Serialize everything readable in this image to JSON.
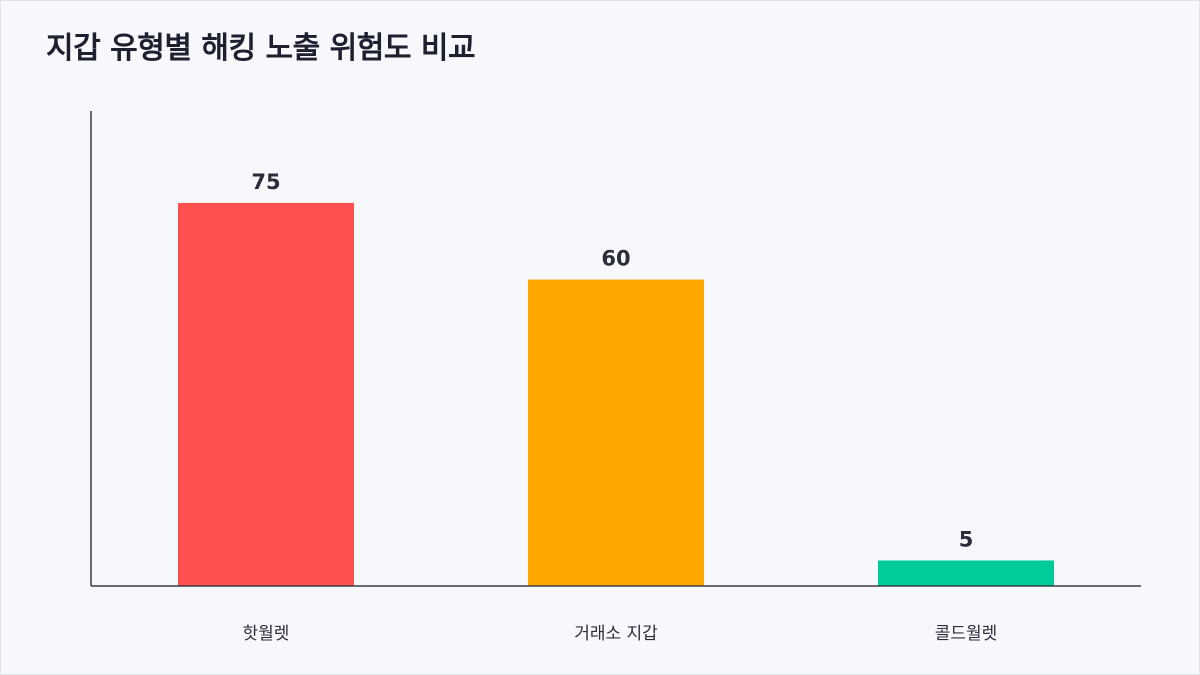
{
  "title": "지갑 유형별 해킹 노출 위험도 비교",
  "chart_data": {
    "type": "bar",
    "categories": [
      "핫월렛",
      "거래소 지갑",
      "콜드월렛"
    ],
    "values": [
      75,
      60,
      5
    ],
    "colors": [
      "#ff4f4f",
      "#ffa600",
      "#00cc99"
    ],
    "title": "지갑 유형별 해킹 노출 위험도 비교",
    "xlabel": "",
    "ylabel": "",
    "ylim": [
      0,
      93
    ],
    "grid": false,
    "legend": "none"
  }
}
